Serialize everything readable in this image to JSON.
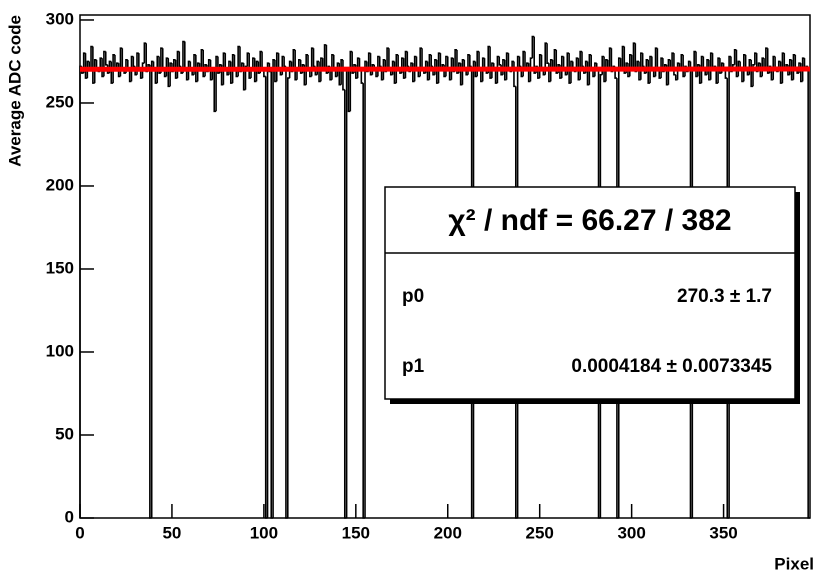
{
  "chart_data": {
    "type": "histogram",
    "x_label": "Pixel",
    "y_label": "Average ADC code",
    "color": "#000000",
    "bins": [
      0,
      1,
      2,
      3,
      4,
      5,
      6,
      7,
      8,
      9,
      10,
      11,
      12,
      13,
      14,
      15,
      16,
      17,
      18,
      19,
      20,
      21,
      22,
      23,
      24,
      25,
      26,
      27,
      28,
      29,
      30,
      31,
      32,
      33,
      34,
      35,
      36,
      37,
      38,
      39,
      40,
      41,
      42,
      43,
      44,
      45,
      46,
      47,
      48,
      49,
      50,
      51,
      52,
      53,
      54,
      55,
      56,
      57,
      58,
      59,
      60,
      61,
      62,
      63,
      64,
      65,
      66,
      67,
      68,
      69,
      70,
      71,
      72,
      73,
      74,
      75,
      76,
      77,
      78,
      79,
      80,
      81,
      82,
      83,
      84,
      85,
      86,
      87,
      88,
      89,
      90,
      91,
      92,
      93,
      94,
      95,
      96,
      97,
      98,
      99,
      100,
      101,
      102,
      103,
      104,
      105,
      106,
      107,
      108,
      109,
      110,
      111,
      112,
      113,
      114,
      115,
      116,
      117,
      118,
      119,
      120,
      121,
      122,
      123,
      124,
      125,
      126,
      127,
      128,
      129,
      130,
      131,
      132,
      133,
      134,
      135,
      136,
      137,
      138,
      139,
      140,
      141,
      142,
      143,
      144,
      145,
      146,
      147,
      148,
      149,
      150,
      151,
      152,
      153,
      154,
      155,
      156,
      157,
      158,
      159,
      160,
      161,
      162,
      163,
      164,
      165,
      166,
      167,
      168,
      169,
      170,
      171,
      172,
      173,
      174,
      175,
      176,
      177,
      178,
      179,
      180,
      181,
      182,
      183,
      184,
      185,
      186,
      187,
      188,
      189,
      190,
      191,
      192,
      193,
      194,
      195,
      196,
      197,
      198,
      199,
      200,
      201,
      202,
      203,
      204,
      205,
      206,
      207,
      208,
      209,
      210,
      211,
      212,
      213,
      214,
      215,
      216,
      217,
      218,
      219,
      220,
      221,
      222,
      223,
      224,
      225,
      226,
      227,
      228,
      229,
      230,
      231,
      232,
      233,
      234,
      235,
      236,
      237,
      238,
      239,
      240,
      241,
      242,
      243,
      244,
      245,
      246,
      247,
      248,
      249,
      250,
      251,
      252,
      253,
      254,
      255,
      256,
      257,
      258,
      259,
      260,
      261,
      262,
      263,
      264,
      265,
      266,
      267,
      268,
      269,
      270,
      271,
      272,
      273,
      274,
      275,
      276,
      277,
      278,
      279,
      280,
      281,
      282,
      283,
      284,
      285,
      286,
      287,
      288,
      289,
      290,
      291,
      292,
      293,
      294,
      295,
      296,
      297,
      298,
      299,
      300,
      301,
      302,
      303,
      304,
      305,
      306,
      307,
      308,
      309,
      310,
      311,
      312,
      313,
      314,
      315,
      316,
      317,
      318,
      319,
      320,
      321,
      322,
      323,
      324,
      325,
      326,
      327,
      328,
      329,
      330,
      331,
      332,
      333,
      334,
      335,
      336,
      337,
      338,
      339,
      340,
      341,
      342,
      343,
      344,
      345,
      346,
      347,
      348,
      349,
      350,
      351,
      352,
      353,
      354,
      355,
      356,
      357,
      358,
      359,
      360,
      361,
      362,
      363,
      364,
      365,
      366,
      367,
      368,
      369,
      370,
      371,
      372,
      373,
      374,
      375,
      376,
      377,
      378,
      379,
      380,
      381,
      382,
      383,
      384,
      385,
      386,
      387,
      388,
      389,
      390,
      391,
      392,
      393,
      394,
      395,
      396,
      397
    ],
    "values": [
      272,
      268,
      280,
      265,
      275,
      270,
      284,
      262,
      276,
      271,
      269,
      277,
      266,
      281,
      273,
      268,
      275,
      262,
      279,
      270,
      274,
      266,
      283,
      270,
      268,
      276,
      271,
      263,
      278,
      272,
      267,
      280,
      271,
      265,
      274,
      286,
      269,
      273,
      0,
      275,
      270,
      262,
      278,
      268,
      283,
      271,
      266,
      277,
      260,
      274,
      269,
      276,
      265,
      281,
      272,
      268,
      287,
      270,
      264,
      275,
      271,
      267,
      279,
      263,
      274,
      270,
      282,
      266,
      273,
      269,
      276,
      264,
      271,
      245,
      278,
      268,
      273,
      261,
      280,
      270,
      267,
      275,
      262,
      279,
      271,
      266,
      284,
      269,
      274,
      258,
      272,
      280,
      265,
      270,
      277,
      263,
      275,
      268,
      281,
      271,
      266,
      0,
      274,
      269,
      0,
      276,
      263,
      280,
      270,
      267,
      278,
      272,
      0,
      265,
      275,
      269,
      282,
      264,
      271,
      276,
      268,
      273,
      261,
      279,
      270,
      266,
      283,
      272,
      267,
      275,
      263,
      277,
      270,
      285,
      268,
      272,
      264,
      279,
      271,
      266,
      274,
      261,
      276,
      258,
      0,
      270,
      245,
      281,
      268,
      273,
      265,
      277,
      271,
      262,
      0,
      275,
      269,
      280,
      267,
      273,
      270,
      266,
      278,
      272,
      264,
      276,
      269,
      283,
      271,
      267,
      275,
      262,
      279,
      270,
      268,
      277,
      265,
      281,
      272,
      269,
      274,
      263,
      278,
      270,
      266,
      283,
      271,
      268,
      275,
      264,
      279,
      272,
      267,
      276,
      262,
      280,
      270,
      273,
      266,
      278,
      271,
      264,
      277,
      269,
      282,
      268,
      274,
      261,
      276,
      270,
      267,
      279,
      272,
      0,
      275,
      266,
      281,
      270,
      263,
      277,
      271,
      268,
      284,
      265,
      274,
      270,
      262,
      278,
      273,
      267,
      276,
      264,
      280,
      271,
      269,
      275,
      260,
      0,
      278,
      272,
      266,
      281,
      270,
      274,
      263,
      277,
      290,
      268,
      272,
      265,
      279,
      271,
      267,
      286,
      274,
      263,
      276,
      270,
      282,
      268,
      273,
      265,
      278,
      271,
      267,
      280,
      262,
      275,
      270,
      269,
      277,
      264,
      281,
      272,
      268,
      275,
      261,
      279,
      270,
      266,
      274,
      270,
      0,
      267,
      278,
      263,
      276,
      271,
      283,
      269,
      272,
      265,
      0,
      277,
      270,
      284,
      268,
      274,
      266,
      279,
      271,
      286,
      269,
      275,
      264,
      280,
      272,
      268,
      276,
      262,
      278,
      270,
      266,
      283,
      271,
      265,
      277,
      269,
      273,
      261,
      276,
      270,
      280,
      267,
      264,
      274,
      271,
      279,
      266,
      272,
      269,
      275,
      0,
      270,
      281,
      266,
      273,
      262,
      278,
      271,
      267,
      276,
      264,
      280,
      270,
      272,
      262,
      277,
      268,
      274,
      271,
      265,
      0,
      278,
      269,
      273,
      282,
      266,
      275,
      270,
      263,
      279,
      271,
      267,
      276,
      260,
      273,
      280,
      269,
      274,
      266,
      277,
      270,
      283,
      268,
      272,
      264,
      278,
      271,
      269,
      275,
      262,
      280,
      270,
      273,
      267,
      276,
      264,
      279,
      271,
      268,
      274,
      263,
      277,
      270,
      272,
      0
    ],
    "xlim": [
      0,
      397
    ],
    "ylim": [
      0,
      303
    ],
    "xticks": [
      0,
      50,
      100,
      150,
      200,
      250,
      300,
      350
    ],
    "yticks": [
      0,
      50,
      100,
      150,
      200,
      250,
      300
    ],
    "fit": {
      "color": "#ff0000",
      "chi2_label": "χ² / ndf = 66.27 / 382",
      "chi2": 66.27,
      "ndf": 382,
      "params": [
        {
          "name": "p0",
          "value": 270.3,
          "error": 1.7,
          "label": "270.3 ± 1.7"
        },
        {
          "name": "p1",
          "value": 0.0004184,
          "error": 0.0073345,
          "label": "0.0004184 ± 0.0073345"
        }
      ]
    }
  }
}
